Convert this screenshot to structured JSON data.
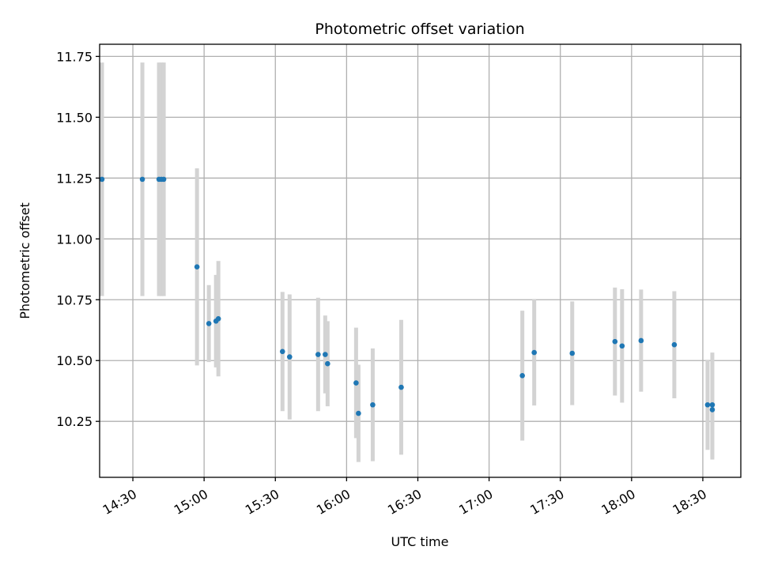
{
  "chart_data": {
    "type": "scatter",
    "title": "Photometric offset variation",
    "xlabel": "UTC time",
    "ylabel": "Photometric offset",
    "grid": true,
    "x_ticks": [
      "14:30",
      "15:00",
      "15:30",
      "16:00",
      "16:30",
      "17:00",
      "17:30",
      "18:00",
      "18:30"
    ],
    "x_tick_minutes": [
      870,
      900,
      930,
      960,
      990,
      1020,
      1050,
      1080,
      1110
    ],
    "y_ticks": [
      "10.25",
      "10.50",
      "10.75",
      "11.00",
      "11.25",
      "11.50",
      "11.75"
    ],
    "y_tick_values": [
      10.25,
      10.5,
      10.75,
      11.0,
      11.25,
      11.5,
      11.75
    ],
    "xlim": [
      "14:16",
      "18:46"
    ],
    "ylim": [
      10.02,
      11.8
    ],
    "point_color": "#1f77b4",
    "errorbar_color": "#d3d3d3",
    "series": [
      {
        "points": [
          {
            "t": "14:17",
            "y": 11.245,
            "err": 0.48
          },
          {
            "t": "14:34",
            "y": 11.245,
            "err": 0.48
          },
          {
            "t": "14:41",
            "y": 11.245,
            "err": 0.48
          },
          {
            "t": "14:42",
            "y": 11.245,
            "err": 0.48
          },
          {
            "t": "14:43",
            "y": 11.245,
            "err": 0.48
          },
          {
            "t": "14:57",
            "y": 10.885,
            "err": 0.405
          },
          {
            "t": "15:02",
            "y": 10.652,
            "err": 0.158
          },
          {
            "t": "15:05",
            "y": 10.662,
            "err": 0.19
          },
          {
            "t": "15:06",
            "y": 10.672,
            "err": 0.237
          },
          {
            "t": "15:33",
            "y": 10.537,
            "err": 0.245
          },
          {
            "t": "15:36",
            "y": 10.515,
            "err": 0.257
          },
          {
            "t": "15:48",
            "y": 10.525,
            "err": 0.233
          },
          {
            "t": "15:51",
            "y": 10.525,
            "err": 0.16
          },
          {
            "t": "15:52",
            "y": 10.487,
            "err": 0.175
          },
          {
            "t": "16:04",
            "y": 10.408,
            "err": 0.227
          },
          {
            "t": "16:05",
            "y": 10.283,
            "err": 0.2
          },
          {
            "t": "16:11",
            "y": 10.318,
            "err": 0.232
          },
          {
            "t": "16:23",
            "y": 10.39,
            "err": 0.277
          },
          {
            "t": "17:14",
            "y": 10.438,
            "err": 0.267
          },
          {
            "t": "17:19",
            "y": 10.533,
            "err": 0.218
          },
          {
            "t": "17:35",
            "y": 10.53,
            "err": 0.213
          },
          {
            "t": "17:53",
            "y": 10.578,
            "err": 0.222
          },
          {
            "t": "17:56",
            "y": 10.56,
            "err": 0.233
          },
          {
            "t": "18:04",
            "y": 10.582,
            "err": 0.21
          },
          {
            "t": "18:18",
            "y": 10.565,
            "err": 0.22
          },
          {
            "t": "18:32",
            "y": 10.318,
            "err": 0.185
          },
          {
            "t": "18:34",
            "y": 10.298,
            "err": 0.205
          },
          {
            "t": "18:34",
            "y": 10.318,
            "err": 0.215
          }
        ]
      }
    ]
  }
}
